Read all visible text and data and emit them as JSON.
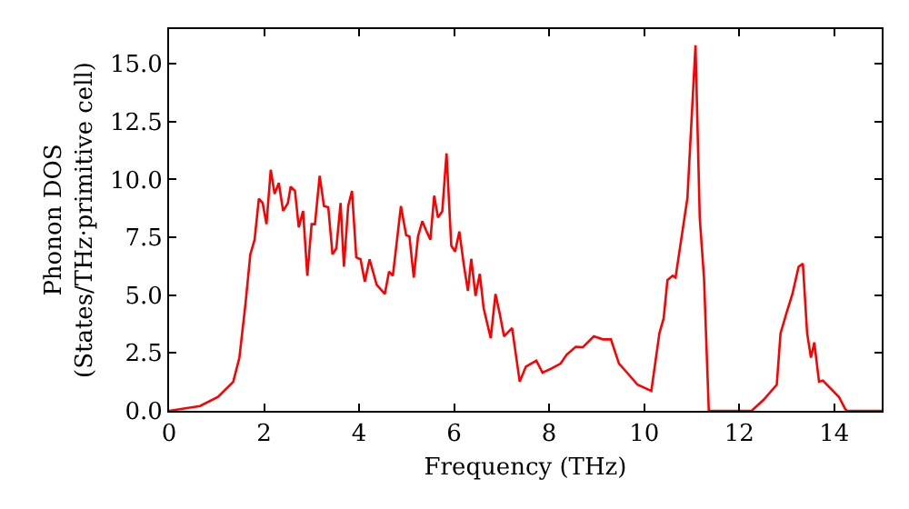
{
  "chart_data": {
    "type": "line",
    "xlabel": "Frequency (THz)",
    "ylabel": "Phonon DOS\n(States/THz·primitive cell)",
    "xlim": [
      0,
      15
    ],
    "ylim": [
      0,
      16.5
    ],
    "xticks": [
      0,
      2,
      4,
      6,
      8,
      10,
      12,
      14
    ],
    "yticks": [
      {
        "value": 0,
        "label": "0.0"
      },
      {
        "value": 2.5,
        "label": "2.5"
      },
      {
        "value": 5,
        "label": "5.0"
      },
      {
        "value": 7.5,
        "label": "7.5"
      },
      {
        "value": 10,
        "label": "10.0"
      },
      {
        "value": 12.5,
        "label": "12.5"
      },
      {
        "value": 15,
        "label": "15.0"
      }
    ],
    "marker": "none",
    "line_style": "solid",
    "series": [
      {
        "color": "#ff0000",
        "x": [
          0.0,
          0.65,
          1.03,
          1.35,
          1.48,
          1.61,
          1.71,
          1.8,
          1.89,
          1.97,
          2.05,
          2.14,
          2.22,
          2.31,
          2.4,
          2.5,
          2.56,
          2.65,
          2.73,
          2.82,
          2.91,
          3.0,
          3.07,
          3.17,
          3.26,
          3.35,
          3.44,
          3.52,
          3.61,
          3.68,
          3.77,
          3.85,
          3.94,
          4.03,
          4.12,
          4.22,
          4.37,
          4.54,
          4.63,
          4.71,
          4.88,
          4.99,
          5.06,
          5.15,
          5.24,
          5.33,
          5.41,
          5.5,
          5.58,
          5.66,
          5.75,
          5.84,
          5.94,
          6.02,
          6.11,
          6.2,
          6.29,
          6.36,
          6.45,
          6.54,
          6.62,
          6.77,
          6.87,
          6.96,
          7.05,
          7.22,
          7.38,
          7.51,
          7.73,
          7.86,
          8.05,
          8.24,
          8.37,
          8.56,
          8.71,
          8.94,
          9.13,
          9.3,
          9.47,
          9.64,
          9.86,
          10.15,
          10.32,
          10.41,
          10.49,
          10.6,
          10.66,
          10.91,
          11.08,
          11.17,
          11.26,
          11.36,
          12.26,
          12.51,
          12.79,
          12.87,
          13.0,
          13.12,
          13.25,
          13.34,
          13.43,
          13.51,
          13.58,
          13.68,
          13.76,
          14.1,
          14.23,
          14.27,
          15.0
        ],
        "values": [
          0.0,
          0.21,
          0.6,
          1.25,
          2.3,
          4.66,
          6.76,
          7.4,
          9.17,
          8.98,
          8.07,
          10.42,
          9.38,
          9.85,
          8.64,
          8.98,
          9.69,
          9.5,
          7.93,
          8.64,
          5.84,
          8.07,
          8.07,
          10.16,
          8.85,
          8.8,
          6.76,
          7.02,
          8.98,
          6.23,
          8.85,
          9.5,
          6.63,
          6.55,
          5.58,
          6.55,
          5.45,
          5.05,
          6.02,
          5.84,
          8.85,
          7.59,
          7.54,
          5.76,
          7.54,
          8.2,
          7.8,
          7.4,
          9.3,
          8.36,
          8.62,
          11.13,
          7.14,
          6.88,
          7.75,
          6.36,
          5.18,
          6.57,
          4.97,
          5.92,
          4.45,
          3.14,
          5.05,
          4.19,
          3.22,
          3.58,
          1.26,
          1.91,
          2.17,
          1.65,
          1.83,
          2.04,
          2.43,
          2.77,
          2.75,
          3.22,
          3.09,
          3.09,
          2.04,
          1.65,
          1.13,
          0.86,
          3.35,
          4.0,
          5.65,
          5.84,
          5.76,
          9.2,
          15.8,
          8.33,
          5.71,
          0.0,
          0.0,
          0.47,
          1.13,
          3.35,
          4.26,
          5.05,
          6.23,
          6.36,
          3.35,
          2.3,
          2.96,
          1.26,
          1.31,
          0.6,
          0.08,
          0.0,
          0.0
        ]
      }
    ]
  }
}
